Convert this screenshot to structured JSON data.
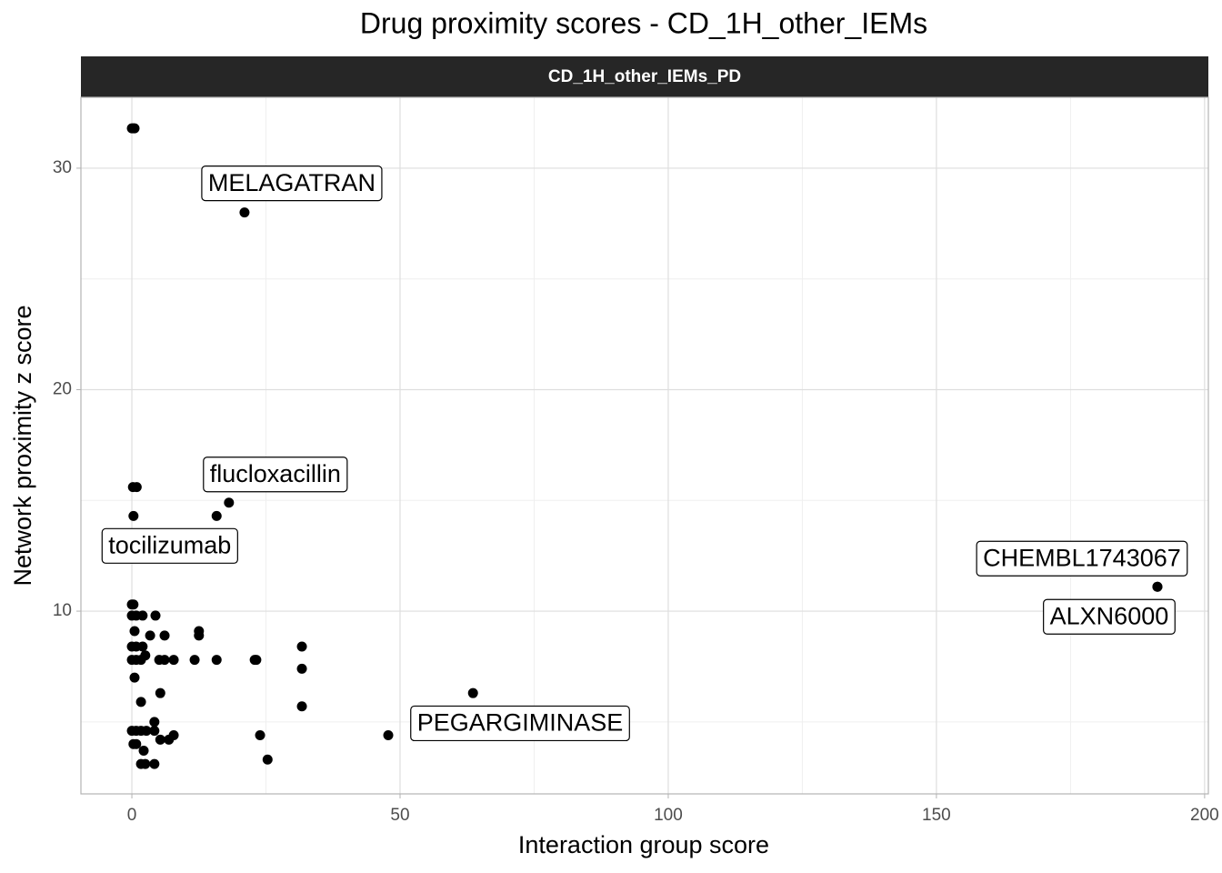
{
  "chart_data": {
    "type": "scatter",
    "title": "Drug proximity scores - CD_1H_other_IEMs",
    "facet": "CD_1H_other_IEMs_PD",
    "x_label": "Interaction group score",
    "y_label": "Network proximity z score",
    "color": "#000000",
    "grid": true,
    "xlim": [
      -9.5,
      200.7
    ],
    "xticks": [
      0,
      50,
      100,
      150,
      200
    ],
    "x_minor_grid": [
      25,
      75,
      125,
      175
    ],
    "ylim": [
      1.75,
      33.2
    ],
    "yticks": [
      10,
      20,
      30
    ],
    "y_minor_grid": [
      5,
      15,
      25
    ],
    "x": [
      0,
      0.3,
      0.5,
      21,
      18.1,
      15.8,
      0.3,
      0.2,
      0.9,
      191.2,
      191.2,
      63.6,
      47.8,
      31.7,
      31.7,
      31.7,
      23.9,
      25.3,
      22.9,
      23.2,
      15.8,
      11.7,
      12.5,
      12.5,
      7.8,
      6.1,
      6.1,
      3.4,
      4.4,
      2.0,
      0,
      0.3,
      0,
      0.8,
      0.5,
      0,
      0.8,
      2.0,
      0,
      0.8,
      1.7,
      2.5,
      5.1,
      0.5,
      5.3,
      1.7,
      4.2,
      0,
      0.8,
      1.7,
      2.7,
      4.2,
      7.8,
      5.3,
      6.9,
      0.3,
      0.8,
      2.2,
      1.7,
      2.5,
      4.2
    ],
    "y": [
      31.8,
      31.8,
      31.8,
      28.0,
      14.9,
      14.3,
      14.3,
      15.6,
      15.6,
      11.1,
      11.1,
      6.3,
      4.4,
      8.4,
      7.4,
      5.7,
      4.4,
      3.3,
      7.8,
      7.8,
      7.8,
      7.8,
      9.1,
      8.9,
      7.8,
      7.8,
      8.9,
      8.9,
      9.8,
      9.8,
      10.3,
      10.3,
      9.8,
      9.8,
      9.1,
      8.4,
      8.4,
      8.4,
      7.8,
      7.8,
      7.8,
      8.0,
      7.8,
      7.0,
      6.3,
      5.9,
      5.0,
      4.6,
      4.6,
      4.6,
      4.6,
      4.6,
      4.4,
      4.2,
      4.2,
      4.0,
      4.0,
      3.7,
      3.1,
      3.1,
      3.1
    ],
    "point_labels": [
      null,
      null,
      null,
      "MELAGATRAN",
      "flucloxacillin",
      null,
      "tocilizumab",
      null,
      null,
      "CHEMBL1743067",
      "ALXN6000",
      null,
      "PEGARGIMINASE",
      null,
      null,
      null,
      null,
      null,
      null,
      null,
      null,
      null,
      null,
      null,
      null,
      null,
      null,
      null,
      null,
      null,
      null,
      null,
      null,
      null,
      null,
      null,
      null,
      null,
      null,
      null,
      null,
      null,
      null,
      null,
      null,
      null,
      null,
      null,
      null,
      null,
      null,
      null,
      null,
      null,
      null,
      null,
      null,
      null,
      null,
      null,
      null
    ]
  }
}
